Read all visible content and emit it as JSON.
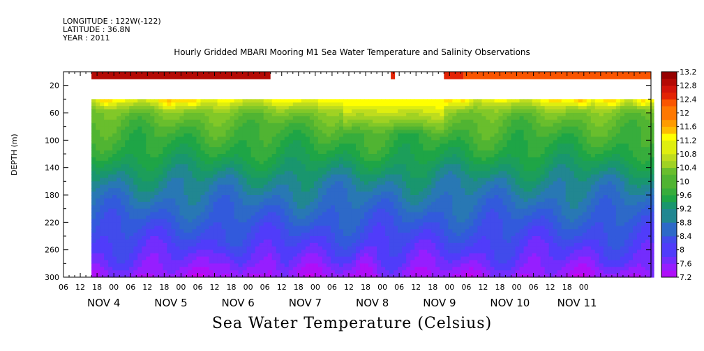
{
  "header": {
    "longitude": "LONGITUDE : 122W(-122)",
    "latitude": "LATITUDE : 36.8N",
    "year": "YEAR : 2011"
  },
  "chart_data": {
    "type": "heatmap",
    "title": "Hourly Gridded MBARI Mooring M1 Sea Water Temperature and Salinity Observations",
    "xlabel": "Sea Water Temperature (Celsius)",
    "ylabel": "DEPTH (m)",
    "x_unit": "hours since NOV 4 00",
    "xlim": [
      -18,
      192
    ],
    "ylim": [
      300,
      0
    ],
    "y_ticks": [
      20,
      60,
      100,
      140,
      180,
      220,
      260,
      300
    ],
    "x_hour_ticks": [
      "06",
      "12",
      "18",
      "00",
      "06",
      "12",
      "18",
      "00",
      "06",
      "12",
      "18",
      "00",
      "06",
      "12",
      "18",
      "00",
      "06",
      "12",
      "18",
      "00",
      "06",
      "12",
      "18",
      "00",
      "06",
      "12",
      "18",
      "00",
      "06",
      "12",
      "18",
      "00"
    ],
    "x_day_labels": [
      "NOV  4",
      "NOV  5",
      "NOV  6",
      "NOV  7",
      "NOV  8",
      "NOV  9",
      "NOV 10",
      "NOV 11"
    ],
    "colorbar": {
      "min": 7.2,
      "max": 13.2,
      "step": 0.2,
      "tick_labels": [
        "13.2",
        "12.8",
        "12.4",
        "12",
        "11.6",
        "11.2",
        "10.8",
        "10.4",
        "10",
        "9.6",
        "9.2",
        "8.8",
        "8.4",
        "8",
        "7.6",
        "7.2"
      ]
    },
    "surface_bands": [
      {
        "from": -8,
        "to": 56,
        "depth": [
          0,
          11
        ],
        "value": 13.0
      },
      {
        "from": 99,
        "to": 100.5,
        "depth": [
          0,
          11
        ],
        "value": 12.6
      },
      {
        "from": 118,
        "to": 125,
        "depth": [
          0,
          11
        ],
        "value": 12.6
      },
      {
        "from": 125,
        "to": 192,
        "depth": [
          0,
          11
        ],
        "value": 12.2
      }
    ],
    "data_start_hour": -8,
    "data_end_hour": 192,
    "data_depth_range": [
      40,
      300
    ],
    "profile_depths": [
      40,
      50,
      60,
      80,
      100,
      120,
      140,
      160,
      180,
      200,
      220,
      240,
      260,
      280,
      300
    ],
    "profile_values": [
      11.2,
      10.7,
      10.3,
      10.0,
      9.8,
      9.6,
      9.3,
      9.0,
      8.8,
      8.6,
      8.4,
      8.2,
      8.0,
      7.8,
      7.5
    ],
    "warm_events": [
      {
        "hour": -3,
        "value": 11.6
      },
      {
        "hour": 19,
        "value": 11.6
      },
      {
        "hour": 28,
        "value": 11.6
      },
      {
        "hour": 125,
        "value": 11.4
      },
      {
        "hour": 167,
        "value": 11.7
      },
      {
        "hour": 178,
        "value": 11.5
      },
      {
        "hour": 189,
        "value": 11.6
      }
    ],
    "warm_period": {
      "from": 82,
      "to": 118,
      "value": 11.2
    },
    "cold_events": [
      {
        "hour": 40,
        "value": 7.4
      },
      {
        "hour": 56,
        "value": 7.4
      },
      {
        "hour": 90,
        "value": 7.3
      }
    ]
  }
}
